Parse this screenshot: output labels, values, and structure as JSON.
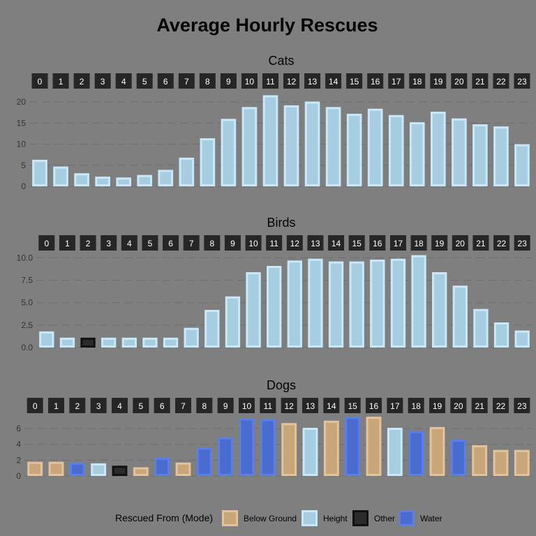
{
  "chart_data": {
    "type": "bar",
    "title": "Average Hourly Rescues",
    "legend": {
      "title": "Rescued From (Mode)",
      "position": "bottom",
      "items": [
        {
          "key": "below",
          "label": "Below Ground",
          "color": "#c9a57a",
          "border": "#e2c49c"
        },
        {
          "key": "height",
          "label": "Height",
          "color": "#a7cde0",
          "border": "#c9e9fb"
        },
        {
          "key": "other",
          "label": "Other",
          "color": "#2b2b2b",
          "border": "#111111"
        },
        {
          "key": "water",
          "label": "Water",
          "color": "#4a6cd1",
          "border": "#5a7fe6"
        }
      ]
    },
    "grid": true,
    "panels": [
      {
        "name": "Cats",
        "categories": [
          "0",
          "1",
          "2",
          "3",
          "4",
          "5",
          "6",
          "7",
          "8",
          "9",
          "10",
          "11",
          "12",
          "13",
          "14",
          "15",
          "16",
          "17",
          "18",
          "19",
          "20",
          "21",
          "22",
          "23"
        ],
        "values": [
          6.3,
          4.7,
          3.1,
          2.3,
          2.1,
          2.7,
          3.9,
          6.8,
          11.4,
          16.0,
          18.8,
          21.6,
          19.2,
          20.1,
          18.8,
          17.2,
          18.4,
          16.9,
          15.2,
          17.7,
          16.1,
          14.7,
          14.2,
          10.0
        ],
        "modes": [
          "height",
          "height",
          "height",
          "height",
          "height",
          "height",
          "height",
          "height",
          "height",
          "height",
          "height",
          "height",
          "height",
          "height",
          "height",
          "height",
          "height",
          "height",
          "height",
          "height",
          "height",
          "height",
          "height",
          "height"
        ],
        "yticks": [
          "0",
          "5",
          "10",
          "15",
          "20"
        ],
        "ylim": [
          0,
          22.5
        ]
      },
      {
        "name": "Birds",
        "categories": [
          "0",
          "1",
          "2",
          "3",
          "4",
          "5",
          "6",
          "7",
          "8",
          "9",
          "10",
          "11",
          "12",
          "13",
          "14",
          "15",
          "16",
          "17",
          "18",
          "19",
          "20",
          "21",
          "22",
          "23"
        ],
        "values": [
          1.8,
          1.1,
          1.1,
          1.1,
          1.1,
          1.1,
          1.1,
          2.2,
          4.2,
          5.7,
          8.4,
          9.1,
          9.7,
          9.9,
          9.6,
          9.6,
          9.8,
          9.9,
          10.3,
          8.4,
          6.9,
          4.3,
          2.8,
          1.9
        ],
        "modes": [
          "height",
          "height",
          "other",
          "height",
          "height",
          "height",
          "height",
          "height",
          "height",
          "height",
          "height",
          "height",
          "height",
          "height",
          "height",
          "height",
          "height",
          "height",
          "height",
          "height",
          "height",
          "height",
          "height",
          "height"
        ],
        "yticks": [
          "0.0",
          "2.5",
          "5.0",
          "7.5",
          "10.0"
        ],
        "ylim": [
          0,
          10.5
        ]
      },
      {
        "name": "Dogs",
        "categories": [
          "0",
          "1",
          "2",
          "3",
          "4",
          "5",
          "6",
          "7",
          "8",
          "9",
          "10",
          "11",
          "12",
          "13",
          "14",
          "15",
          "16",
          "17",
          "18",
          "19",
          "20",
          "21",
          "22",
          "23"
        ],
        "values": [
          1.8,
          1.8,
          1.7,
          1.6,
          1.3,
          1.1,
          2.3,
          1.7,
          3.6,
          4.9,
          7.3,
          7.2,
          6.7,
          6.1,
          7.0,
          7.5,
          7.5,
          6.1,
          5.7,
          6.2,
          4.6,
          3.9,
          3.3,
          3.3
        ],
        "modes": [
          "below",
          "below",
          "water",
          "height",
          "other",
          "below",
          "water",
          "below",
          "water",
          "water",
          "water",
          "water",
          "below",
          "height",
          "below",
          "water",
          "below",
          "height",
          "water",
          "below",
          "water",
          "below",
          "below",
          "below"
        ],
        "yticks": [
          "0",
          "2",
          "4",
          "6"
        ],
        "ylim": [
          0,
          7.6
        ]
      }
    ]
  }
}
